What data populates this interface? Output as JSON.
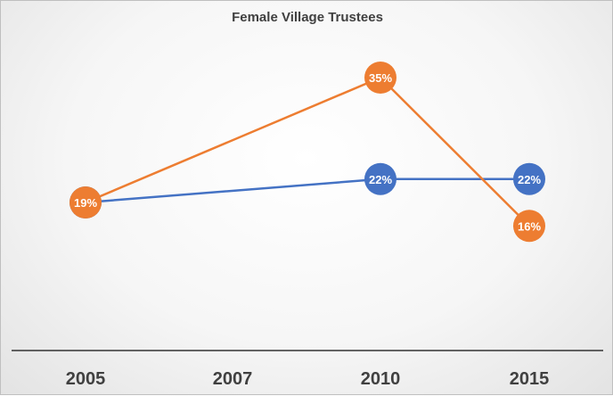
{
  "chart_data": {
    "type": "line",
    "title": "Female Village Trustees",
    "categories": [
      "2005",
      "2007",
      "2010",
      "2015"
    ],
    "series": [
      {
        "color": "#4472C4",
        "points": [
          {
            "x": 2005,
            "y": 19,
            "label": "19%"
          },
          {
            "x": 2010,
            "y": 22,
            "label": "22%"
          },
          {
            "x": 2015,
            "y": 22,
            "label": "22%"
          }
        ]
      },
      {
        "color": "#ED7D31",
        "points": [
          {
            "x": 2005,
            "y": 19,
            "label": "19%"
          },
          {
            "x": 2010,
            "y": 35,
            "label": "35%"
          },
          {
            "x": 2015,
            "y": 16,
            "label": "16%"
          }
        ]
      }
    ],
    "xlabel": "",
    "ylabel": "",
    "grid": false,
    "legend": "none"
  }
}
